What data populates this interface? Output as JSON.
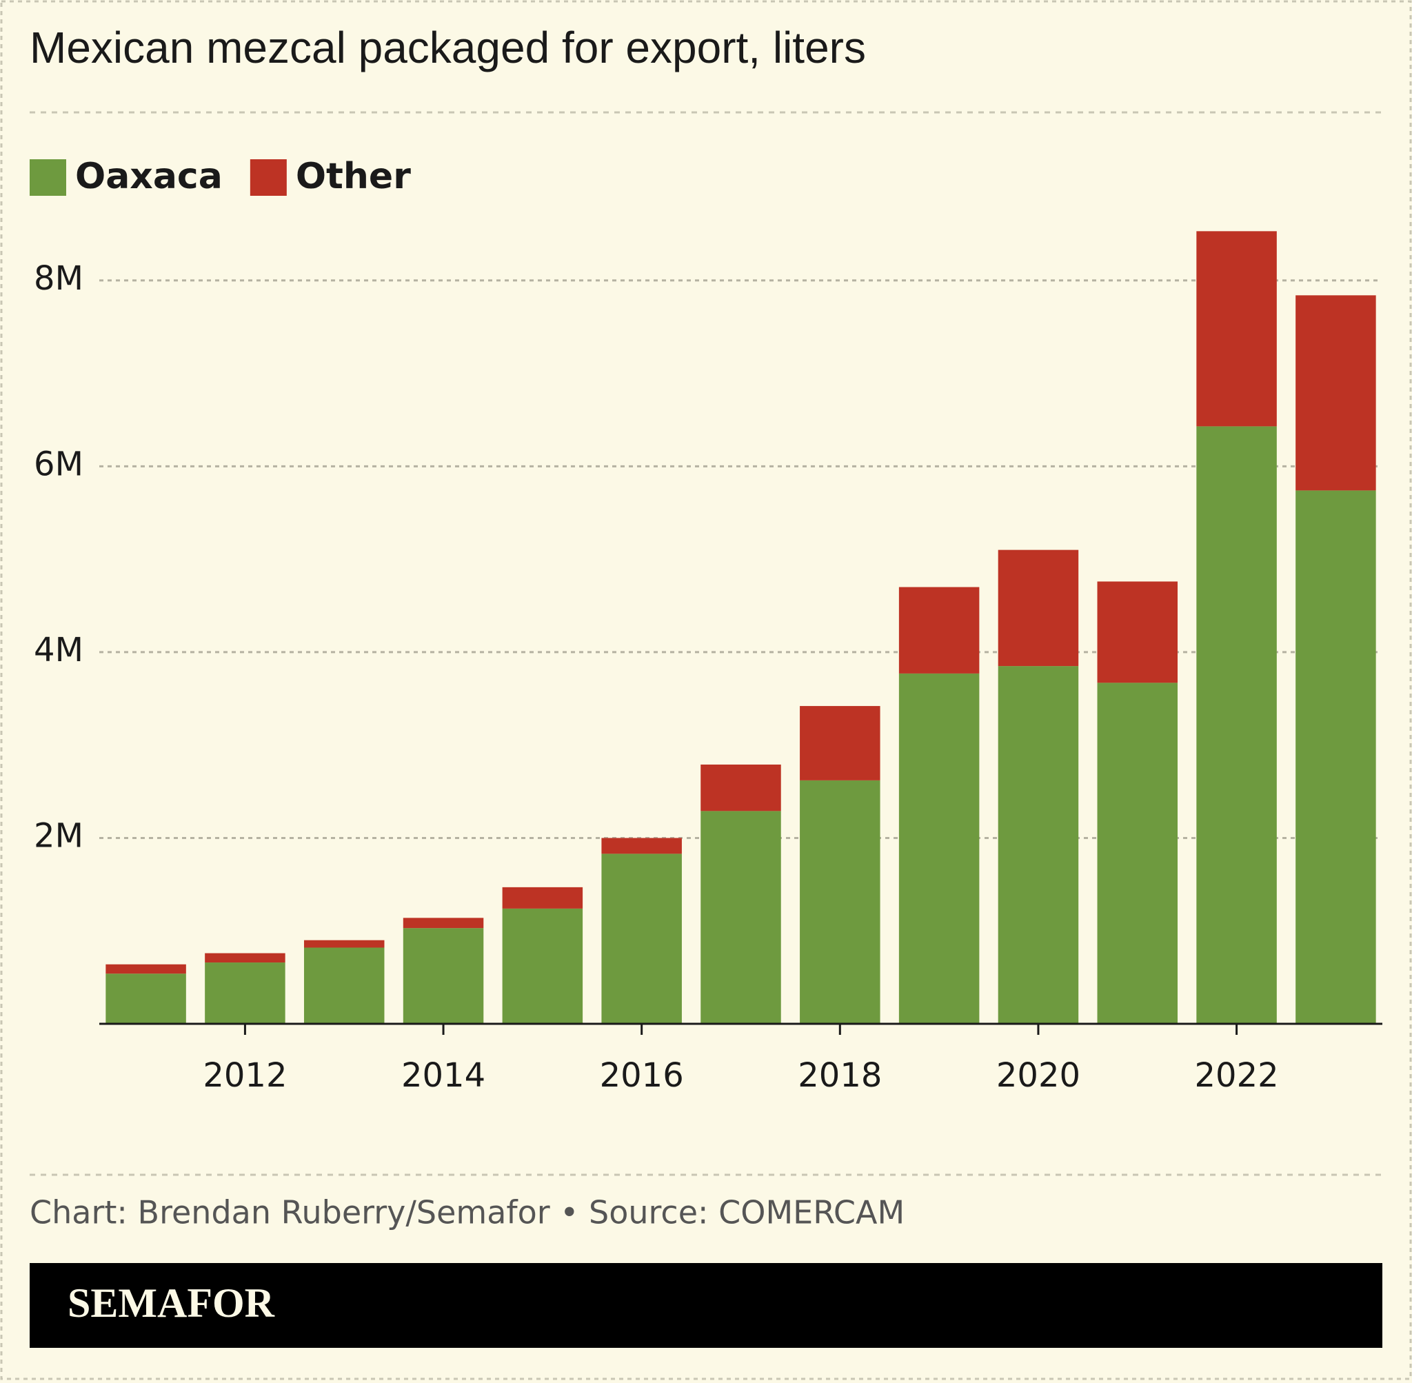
{
  "chart_data": {
    "type": "stacked_bar",
    "title": "Mexican mezcal packaged for export, liters",
    "x": [
      2011,
      2012,
      2013,
      2014,
      2015,
      2016,
      2017,
      2018,
      2019,
      2020,
      2021,
      2022,
      2023
    ],
    "series": [
      {
        "name": "Oaxaca",
        "color": "#6e9a3f",
        "values": [
          540000,
          660000,
          820000,
          1030000,
          1240000,
          1830000,
          2290000,
          2620000,
          3770000,
          3850000,
          3670000,
          6430000,
          5740000
        ]
      },
      {
        "name": "Other",
        "color": "#bd3324",
        "values": [
          100000,
          100000,
          80000,
          110000,
          230000,
          170000,
          500000,
          800000,
          930000,
          1250000,
          1090000,
          2100000,
          2100000
        ]
      }
    ],
    "xlim": [
      2010.53,
      2023.47
    ],
    "xticks": [
      2012,
      2014,
      2016,
      2018,
      2020,
      2022
    ],
    "ylim": [
      0,
      9000000
    ],
    "yticks": [
      {
        "value": 2000000,
        "label": "2M"
      },
      {
        "value": 4000000,
        "label": "4M"
      },
      {
        "value": 6000000,
        "label": "6M"
      },
      {
        "value": 8000000,
        "label": "8M"
      }
    ],
    "grid": true,
    "source": "Chart: Brendan Ruberry/Semafor • Source: COMERCAM",
    "brand": "SEMAFOR"
  }
}
